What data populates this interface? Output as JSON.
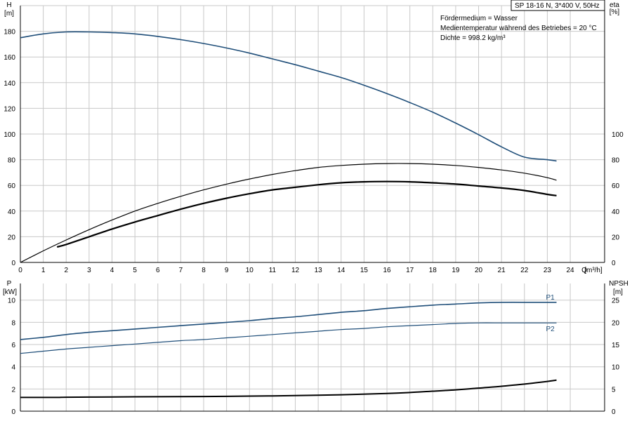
{
  "title_box": "SP 18-16 N, 3*400 V, 50Hz",
  "info_lines": [
    "Fördermedium = Wasser",
    "Medientemperatur während des Betriebes = 20 °C",
    "Dichte = 998.2 kg/m³"
  ],
  "colors": {
    "head": "#1f4e79",
    "eta": "#000000",
    "power": "#1f4e79",
    "npsh": "#000000",
    "grid": "#c8c8c8"
  },
  "chart_data": [
    {
      "type": "line",
      "name": "head-efficiency",
      "xlabel": "Q [m³/h]",
      "xlabel_parts": [
        "Q",
        "[m³/h]"
      ],
      "x_ticks": [
        0,
        1,
        2,
        3,
        4,
        5,
        6,
        7,
        8,
        9,
        10,
        11,
        12,
        13,
        14,
        15,
        16,
        17,
        18,
        19,
        20,
        21,
        22,
        23,
        24
      ],
      "xlim": [
        0,
        25.5
      ],
      "left_axis": {
        "label_parts": [
          "H",
          "[m]"
        ],
        "ticks": [
          0,
          20,
          40,
          60,
          80,
          100,
          120,
          140,
          160,
          180
        ],
        "lim": [
          0,
          200
        ]
      },
      "right_axis": {
        "label_parts": [
          "eta",
          "[%]"
        ],
        "ticks": [
          0,
          20,
          40,
          60,
          80,
          100
        ],
        "lim": [
          0,
          200
        ]
      },
      "grid": true,
      "series": [
        {
          "axis": "left",
          "x": [
            0,
            1,
            2,
            3,
            4,
            5,
            6,
            7,
            8,
            9,
            10,
            11,
            12,
            13,
            14,
            15,
            16,
            17,
            18,
            19,
            20,
            21,
            22,
            23,
            23.4
          ],
          "y": [
            175,
            178,
            179.5,
            179.5,
            179,
            178,
            176,
            173.5,
            170.5,
            167,
            163,
            158.5,
            154,
            149,
            144,
            138,
            131.5,
            124.5,
            117,
            108.5,
            99.5,
            90,
            82,
            80,
            79
          ]
        },
        {
          "axis": "right",
          "x": [
            0,
            1,
            2,
            3,
            4,
            5,
            6,
            7,
            8,
            9,
            10,
            11,
            12,
            13,
            14,
            15,
            16,
            17,
            18,
            19,
            20,
            21,
            22,
            23,
            23.4
          ],
          "y": [
            0,
            9,
            17.5,
            25.5,
            33,
            40,
            46,
            51.5,
            56.5,
            61,
            65,
            68.5,
            71.5,
            74,
            75.5,
            76.5,
            77,
            77,
            76.5,
            75.5,
            74,
            72,
            69.5,
            66,
            64
          ]
        },
        {
          "axis": "right",
          "x": [
            1.6,
            2,
            3,
            4,
            5,
            6,
            7,
            8,
            9,
            10,
            11,
            12,
            13,
            14,
            15,
            16,
            17,
            18,
            19,
            20,
            21,
            22,
            23,
            23.4
          ],
          "y": [
            12,
            14,
            20,
            26,
            31.5,
            36.5,
            41.5,
            46,
            50,
            53.5,
            56.5,
            58.5,
            60.5,
            62,
            62.8,
            63,
            62.8,
            62,
            61,
            59.5,
            58,
            56,
            53,
            52
          ]
        }
      ]
    },
    {
      "type": "line",
      "name": "power-npsh",
      "left_axis": {
        "label_parts": [
          "P",
          "[kW]"
        ],
        "ticks": [
          0,
          2,
          4,
          6,
          8,
          10
        ],
        "lim": [
          0,
          11.5
        ]
      },
      "right_axis": {
        "label_parts": [
          "NPSH",
          "[m]"
        ],
        "ticks": [
          0,
          5,
          10,
          15,
          20,
          25
        ],
        "lim": [
          0,
          28.75
        ]
      },
      "grid": true,
      "series": [
        {
          "name": "P1",
          "axis": "left",
          "x": [
            0,
            1,
            2,
            3,
            4,
            5,
            6,
            7,
            8,
            9,
            10,
            11,
            12,
            13,
            14,
            15,
            16,
            17,
            18,
            19,
            20,
            21,
            22,
            23,
            23.4
          ],
          "y": [
            6.45,
            6.65,
            6.9,
            7.1,
            7.25,
            7.4,
            7.55,
            7.7,
            7.85,
            8.0,
            8.15,
            8.35,
            8.5,
            8.7,
            8.9,
            9.05,
            9.25,
            9.4,
            9.55,
            9.65,
            9.75,
            9.8,
            9.8,
            9.8,
            9.8
          ]
        },
        {
          "name": "P2",
          "axis": "left",
          "x": [
            0,
            1,
            2,
            3,
            4,
            5,
            6,
            7,
            8,
            9,
            10,
            11,
            12,
            13,
            14,
            15,
            16,
            17,
            18,
            19,
            20,
            21,
            22,
            23,
            23.4
          ],
          "y": [
            5.2,
            5.4,
            5.6,
            5.75,
            5.9,
            6.05,
            6.2,
            6.35,
            6.45,
            6.6,
            6.75,
            6.9,
            7.05,
            7.2,
            7.35,
            7.45,
            7.6,
            7.7,
            7.8,
            7.9,
            7.95,
            7.95,
            7.95,
            7.95,
            7.95
          ]
        },
        {
          "axis": "right",
          "x": [
            0,
            1.6,
            2,
            4,
            6,
            8,
            10,
            12,
            14,
            16,
            17,
            18,
            19,
            20,
            21,
            22,
            23,
            23.4
          ],
          "y": [
            3.1,
            3.1,
            3.15,
            3.2,
            3.25,
            3.3,
            3.4,
            3.5,
            3.7,
            4.0,
            4.2,
            4.5,
            4.8,
            5.2,
            5.6,
            6.1,
            6.7,
            7.0
          ]
        }
      ]
    }
  ]
}
